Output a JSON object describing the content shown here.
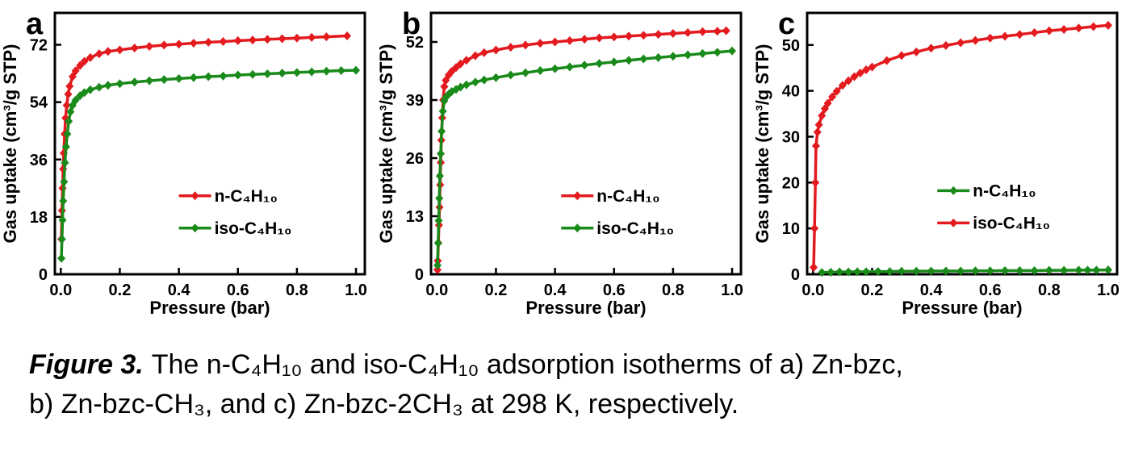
{
  "caption": {
    "label": "Figure 3.",
    "line1": "The n-C₄H₁₀ and iso-C₄H₁₀ adsorption isotherms of a) Zn-bzc,",
    "line2": "b) Zn-bzc-CH₃, and c) Zn-bzc-2CH₃ at 298 K, respectively."
  },
  "colors": {
    "n_butane_red": "#e31a1e",
    "iso_butane_green": "#1a8a1a",
    "axis": "#000000",
    "background": "#ffffff"
  },
  "chart_data": [
    {
      "type": "line",
      "panel_label": "a",
      "xlabel": "Pressure (bar)",
      "ylabel": "Gas uptake (cm³/g STP)",
      "xlim": [
        -0.02,
        1.03
      ],
      "ylim": [
        0,
        82
      ],
      "xticks": [
        0.0,
        0.2,
        0.4,
        0.6,
        0.8,
        1.0
      ],
      "yticks": [
        0,
        18,
        36,
        54,
        72
      ],
      "grid": false,
      "legend_position": "inside lower-right",
      "legend_fraction": {
        "x": 0.4,
        "y": 0.7
      },
      "series": [
        {
          "name": "n-C₄H₁₀",
          "color": "#e31a1e",
          "points": [
            [
              0.002,
              11
            ],
            [
              0.004,
              20
            ],
            [
              0.006,
              27
            ],
            [
              0.008,
              33
            ],
            [
              0.01,
              38
            ],
            [
              0.013,
              44
            ],
            [
              0.016,
              49
            ],
            [
              0.02,
              53
            ],
            [
              0.025,
              56.5
            ],
            [
              0.03,
              59
            ],
            [
              0.04,
              62
            ],
            [
              0.05,
              63.8
            ],
            [
              0.065,
              65.5
            ],
            [
              0.08,
              66.8
            ],
            [
              0.1,
              68
            ],
            [
              0.13,
              69.2
            ],
            [
              0.16,
              69.9
            ],
            [
              0.2,
              70.4
            ],
            [
              0.25,
              71.0
            ],
            [
              0.3,
              71.5
            ],
            [
              0.35,
              71.9
            ],
            [
              0.4,
              72.2
            ],
            [
              0.45,
              72.5
            ],
            [
              0.5,
              72.8
            ],
            [
              0.55,
              73.0
            ],
            [
              0.6,
              73.3
            ],
            [
              0.65,
              73.5
            ],
            [
              0.7,
              73.7
            ],
            [
              0.75,
              73.9
            ],
            [
              0.8,
              74.1
            ],
            [
              0.85,
              74.3
            ],
            [
              0.9,
              74.5
            ],
            [
              0.97,
              74.8
            ]
          ]
        },
        {
          "name": "iso-C₄H₁₀",
          "color": "#1a8a1a",
          "points": [
            [
              0.002,
              5
            ],
            [
              0.004,
              11
            ],
            [
              0.006,
              17
            ],
            [
              0.008,
              23
            ],
            [
              0.011,
              29
            ],
            [
              0.014,
              35
            ],
            [
              0.018,
              40
            ],
            [
              0.022,
              44
            ],
            [
              0.027,
              48
            ],
            [
              0.033,
              51
            ],
            [
              0.04,
              53
            ],
            [
              0.05,
              54.6
            ],
            [
              0.065,
              56
            ],
            [
              0.08,
              57
            ],
            [
              0.1,
              57.9
            ],
            [
              0.13,
              58.7
            ],
            [
              0.16,
              59.3
            ],
            [
              0.2,
              59.8
            ],
            [
              0.25,
              60.3
            ],
            [
              0.3,
              60.7
            ],
            [
              0.35,
              61.1
            ],
            [
              0.4,
              61.4
            ],
            [
              0.45,
              61.7
            ],
            [
              0.5,
              62.0
            ],
            [
              0.55,
              62.2
            ],
            [
              0.6,
              62.5
            ],
            [
              0.65,
              62.7
            ],
            [
              0.7,
              62.9
            ],
            [
              0.75,
              63.1
            ],
            [
              0.8,
              63.3
            ],
            [
              0.85,
              63.5
            ],
            [
              0.9,
              63.7
            ],
            [
              0.95,
              63.9
            ],
            [
              1.0,
              64.0
            ]
          ]
        }
      ]
    },
    {
      "type": "line",
      "panel_label": "b",
      "xlabel": "Pressure (bar)",
      "ylabel": "Gas uptake (cm³/g STP)",
      "xlim": [
        -0.02,
        1.03
      ],
      "ylim": [
        0,
        58.5
      ],
      "xticks": [
        0.0,
        0.2,
        0.4,
        0.6,
        0.8,
        1.0
      ],
      "yticks": [
        0,
        13,
        26,
        39,
        52
      ],
      "grid": false,
      "legend_position": "inside lower-right",
      "legend_fraction": {
        "x": 0.42,
        "y": 0.7
      },
      "series": [
        {
          "name": "n-C₄H₁₀",
          "color": "#e31a1e",
          "points": [
            [
              0.002,
              1
            ],
            [
              0.003,
              3
            ],
            [
              0.005,
              7
            ],
            [
              0.007,
              11
            ],
            [
              0.009,
              15
            ],
            [
              0.011,
              20
            ],
            [
              0.013,
              25
            ],
            [
              0.015,
              30
            ],
            [
              0.018,
              35
            ],
            [
              0.021,
              39
            ],
            [
              0.025,
              42
            ],
            [
              0.03,
              43.4
            ],
            [
              0.04,
              44.6
            ],
            [
              0.05,
              45.4
            ],
            [
              0.065,
              46.3
            ],
            [
              0.08,
              47.1
            ],
            [
              0.1,
              47.9
            ],
            [
              0.13,
              48.9
            ],
            [
              0.16,
              49.6
            ],
            [
              0.2,
              50.2
            ],
            [
              0.25,
              50.8
            ],
            [
              0.3,
              51.3
            ],
            [
              0.35,
              51.7
            ],
            [
              0.4,
              52.0
            ],
            [
              0.45,
              52.3
            ],
            [
              0.5,
              52.6
            ],
            [
              0.55,
              52.9
            ],
            [
              0.6,
              53.1
            ],
            [
              0.65,
              53.3
            ],
            [
              0.7,
              53.5
            ],
            [
              0.75,
              53.7
            ],
            [
              0.8,
              53.9
            ],
            [
              0.85,
              54.1
            ],
            [
              0.9,
              54.3
            ],
            [
              0.95,
              54.4
            ],
            [
              0.98,
              54.5
            ]
          ]
        },
        {
          "name": "iso-C₄H₁₀",
          "color": "#1a8a1a",
          "points": [
            [
              0.002,
              2
            ],
            [
              0.004,
              7
            ],
            [
              0.006,
              12
            ],
            [
              0.008,
              17
            ],
            [
              0.01,
              22
            ],
            [
              0.013,
              27
            ],
            [
              0.016,
              32
            ],
            [
              0.02,
              36.5
            ],
            [
              0.025,
              38.8
            ],
            [
              0.03,
              39.6
            ],
            [
              0.04,
              40.3
            ],
            [
              0.05,
              40.9
            ],
            [
              0.065,
              41.4
            ],
            [
              0.08,
              41.9
            ],
            [
              0.1,
              42.4
            ],
            [
              0.13,
              43.0
            ],
            [
              0.16,
              43.5
            ],
            [
              0.2,
              44.0
            ],
            [
              0.25,
              44.6
            ],
            [
              0.3,
              45.1
            ],
            [
              0.35,
              45.6
            ],
            [
              0.4,
              46.0
            ],
            [
              0.45,
              46.4
            ],
            [
              0.5,
              46.8
            ],
            [
              0.55,
              47.2
            ],
            [
              0.6,
              47.5
            ],
            [
              0.65,
              47.9
            ],
            [
              0.7,
              48.2
            ],
            [
              0.75,
              48.5
            ],
            [
              0.8,
              48.8
            ],
            [
              0.85,
              49.1
            ],
            [
              0.9,
              49.4
            ],
            [
              0.95,
              49.7
            ],
            [
              1.0,
              50.0
            ]
          ]
        }
      ]
    },
    {
      "type": "line",
      "panel_label": "c",
      "xlabel": "Pressure (bar)",
      "ylabel": "Gas uptake (cm³/g STP)",
      "xlim": [
        -0.02,
        1.03
      ],
      "ylim": [
        0,
        57
      ],
      "xticks": [
        0.0,
        0.2,
        0.4,
        0.6,
        0.8,
        1.0
      ],
      "yticks": [
        0,
        10,
        20,
        30,
        40,
        50
      ],
      "grid": false,
      "legend_position": "inside lower-right",
      "legend_fraction": {
        "x": 0.42,
        "y": 0.68
      },
      "series": [
        {
          "name": "n-C₄H₁₀",
          "color": "#1a8a1a",
          "points": [
            [
              0.03,
              0.4
            ],
            [
              0.06,
              0.45
            ],
            [
              0.09,
              0.5
            ],
            [
              0.12,
              0.5
            ],
            [
              0.15,
              0.55
            ],
            [
              0.18,
              0.55
            ],
            [
              0.22,
              0.6
            ],
            [
              0.26,
              0.6
            ],
            [
              0.3,
              0.65
            ],
            [
              0.35,
              0.65
            ],
            [
              0.4,
              0.7
            ],
            [
              0.45,
              0.7
            ],
            [
              0.5,
              0.7
            ],
            [
              0.55,
              0.75
            ],
            [
              0.6,
              0.75
            ],
            [
              0.65,
              0.8
            ],
            [
              0.7,
              0.8
            ],
            [
              0.75,
              0.8
            ],
            [
              0.8,
              0.85
            ],
            [
              0.85,
              0.85
            ],
            [
              0.9,
              0.9
            ],
            [
              0.93,
              0.9
            ],
            [
              0.96,
              0.9
            ],
            [
              1.0,
              0.95
            ]
          ]
        },
        {
          "name": "iso-C₄H₁₀",
          "color": "#e31a1e",
          "points": [
            [
              0.002,
              1.5
            ],
            [
              0.005,
              10
            ],
            [
              0.008,
              20
            ],
            [
              0.01,
              28
            ],
            [
              0.015,
              31
            ],
            [
              0.02,
              32.6
            ],
            [
              0.03,
              34.6
            ],
            [
              0.04,
              36.1
            ],
            [
              0.05,
              37.3
            ],
            [
              0.065,
              38.7
            ],
            [
              0.08,
              39.9
            ],
            [
              0.1,
              41.2
            ],
            [
              0.12,
              42.2
            ],
            [
              0.14,
              43.1
            ],
            [
              0.16,
              43.9
            ],
            [
              0.18,
              44.6
            ],
            [
              0.2,
              45.2
            ],
            [
              0.25,
              46.6
            ],
            [
              0.3,
              47.7
            ],
            [
              0.35,
              48.5
            ],
            [
              0.4,
              49.3
            ],
            [
              0.45,
              49.9
            ],
            [
              0.5,
              50.5
            ],
            [
              0.55,
              51.0
            ],
            [
              0.6,
              51.5
            ],
            [
              0.65,
              51.9
            ],
            [
              0.7,
              52.3
            ],
            [
              0.75,
              52.7
            ],
            [
              0.8,
              53.1
            ],
            [
              0.85,
              53.4
            ],
            [
              0.9,
              53.7
            ],
            [
              0.95,
              54.0
            ],
            [
              1.0,
              54.3
            ]
          ]
        }
      ]
    }
  ]
}
